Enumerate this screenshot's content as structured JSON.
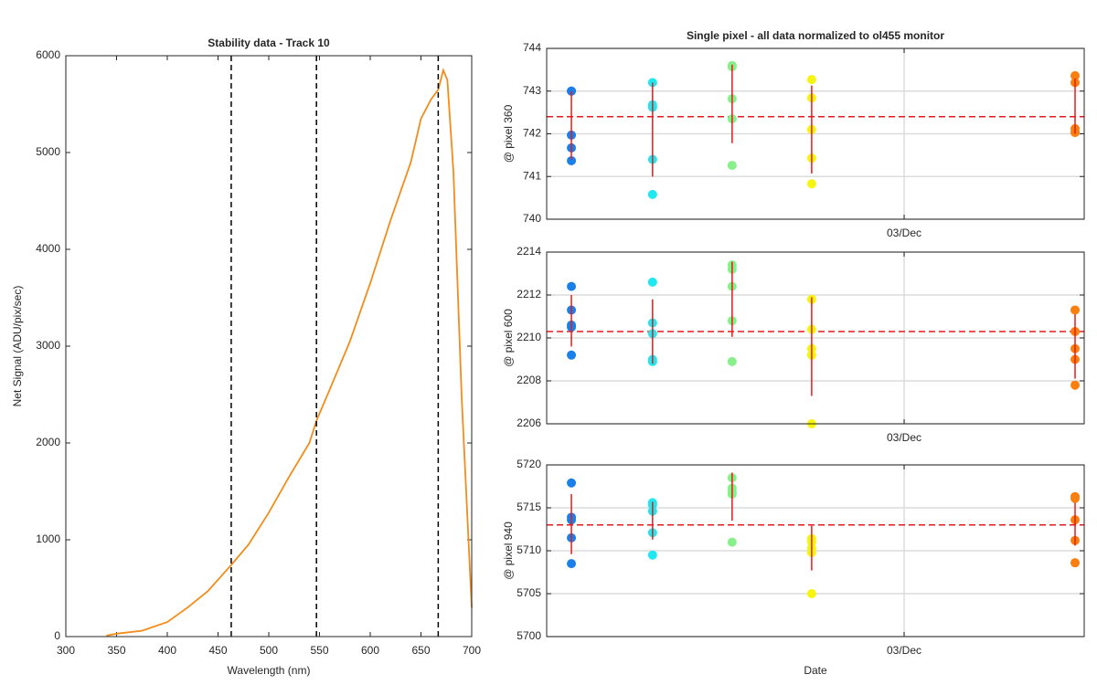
{
  "chart_data": [
    {
      "type": "line",
      "title": "Stability data - Track 10",
      "x_label": "Wavelength (nm)",
      "y_label": "Net Signal (ADU/pix/sec)",
      "xlim": [
        300,
        700
      ],
      "xticks": [
        300,
        350,
        400,
        450,
        500,
        550,
        600,
        650,
        700
      ],
      "ylim": [
        0,
        6000
      ],
      "yticks": [
        0,
        1000,
        2000,
        3000,
        4000,
        5000,
        6000
      ],
      "grid": false,
      "series": [
        {
          "color": "#f28c1a",
          "x": [
            340,
            350,
            375,
            400,
            420,
            440,
            463,
            480,
            500,
            520,
            540,
            547,
            560,
            580,
            600,
            620,
            640,
            650,
            660,
            667,
            672,
            676,
            682,
            690,
            700
          ],
          "values": [
            10,
            30,
            60,
            150,
            300,
            470,
            740,
            950,
            1280,
            1650,
            2000,
            2230,
            2550,
            3050,
            3650,
            4300,
            4900,
            5350,
            5550,
            5650,
            5850,
            5750,
            4800,
            2500,
            300
          ]
        }
      ],
      "vlines": [
        463,
        547,
        667
      ],
      "vline_color": "#000000"
    },
    {
      "type": "scatter",
      "title": "Single pixel - all data normalized to ol455 monitor",
      "y_label": "@ pixel 360",
      "xlim": [
        0,
        100
      ],
      "xticks": [
        {
          "value": 66.5,
          "label": "03/Dec"
        }
      ],
      "ylim": [
        740,
        744
      ],
      "yticks": [
        740,
        741,
        742,
        743,
        744
      ],
      "grid": true,
      "mean_line": 742.4,
      "line_color": "#e8191c",
      "series": [
        {
          "color": "#1a7fe8",
          "x": 4.6,
          "values": [
            743.0,
            741.97,
            741.67,
            741.37,
            743.0
          ],
          "mean": 742.2,
          "std": 0.8
        },
        {
          "color": "#1ee8f0",
          "x": 19.7,
          "values": [
            743.2,
            742.68,
            742.62,
            741.4,
            740.58
          ],
          "mean": 742.1,
          "std": 1.1
        },
        {
          "color": "#88f08a",
          "x": 34.5,
          "values": [
            743.6,
            743.57,
            742.82,
            742.35,
            741.26
          ],
          "mean": 742.7,
          "std": 0.92
        },
        {
          "color": "#f5f50f",
          "x": 49.3,
          "values": [
            743.27,
            742.84,
            742.1,
            741.43,
            740.83
          ],
          "mean": 742.1,
          "std": 1.03
        },
        {
          "color": "#f97f0f",
          "x": 98.3,
          "values": [
            743.36,
            743.2,
            742.12,
            742.03,
            742.05
          ],
          "mean": 742.65,
          "std": 0.65
        }
      ]
    },
    {
      "type": "scatter",
      "y_label": "@ pixel 600",
      "xlim": [
        0,
        100
      ],
      "xticks": [
        {
          "value": 66.5,
          "label": "03/Dec"
        }
      ],
      "ylim": [
        2206,
        2214
      ],
      "yticks": [
        2206,
        2208,
        2210,
        2212,
        2214
      ],
      "grid": true,
      "mean_line": 2210.3,
      "line_color": "#e8191c",
      "series": [
        {
          "color": "#1a7fe8",
          "x": 4.6,
          "values": [
            2212.4,
            2211.3,
            2210.6,
            2210.5,
            2209.2
          ],
          "mean": 2210.8,
          "std": 1.2
        },
        {
          "color": "#1ee8f0",
          "x": 19.7,
          "values": [
            2212.6,
            2210.7,
            2210.2,
            2209.0,
            2208.9
          ],
          "mean": 2210.3,
          "std": 1.5
        },
        {
          "color": "#88f08a",
          "x": 34.5,
          "values": [
            2213.4,
            2213.2,
            2212.4,
            2210.8,
            2208.9
          ],
          "mean": 2211.8,
          "std": 1.75
        },
        {
          "color": "#f5f50f",
          "x": 49.3,
          "values": [
            2211.8,
            2210.4,
            2209.5,
            2209.2,
            2206.0
          ],
          "mean": 2209.6,
          "std": 2.3
        },
        {
          "color": "#f97f0f",
          "x": 98.3,
          "values": [
            2211.3,
            2210.3,
            2209.5,
            2209.0,
            2207.8
          ],
          "mean": 2209.6,
          "std": 1.5
        }
      ]
    },
    {
      "type": "scatter",
      "y_label": "@ pixel 940",
      "x_label": "Date",
      "xlim": [
        0,
        100
      ],
      "xticks": [
        {
          "value": 66.5,
          "label": "03/Dec"
        }
      ],
      "ylim": [
        5700,
        5720
      ],
      "yticks": [
        5700,
        5705,
        5710,
        5715,
        5720
      ],
      "grid": true,
      "mean_line": 5713.0,
      "line_color": "#e8191c",
      "series": [
        {
          "color": "#1a7fe8",
          "x": 4.6,
          "values": [
            5717.9,
            5713.9,
            5713.6,
            5711.5,
            5708.5
          ],
          "mean": 5713.1,
          "std": 3.5
        },
        {
          "color": "#1ee8f0",
          "x": 19.7,
          "values": [
            5715.6,
            5715.3,
            5714.6,
            5712.1,
            5709.5
          ],
          "mean": 5713.5,
          "std": 2.2
        },
        {
          "color": "#88f08a",
          "x": 34.5,
          "values": [
            5718.5,
            5717.3,
            5716.6,
            5716.9,
            5711.0
          ],
          "mean": 5716.3,
          "std": 2.8
        },
        {
          "color": "#f5f50f",
          "x": 49.3,
          "values": [
            5711.4,
            5711.0,
            5710.3,
            5709.8,
            5705.0
          ],
          "mean": 5710.3,
          "std": 2.6
        },
        {
          "color": "#f97f0f",
          "x": 98.3,
          "values": [
            5716.3,
            5716.1,
            5713.6,
            5711.2,
            5708.6
          ],
          "mean": 5713.1,
          "std": 2.5
        }
      ]
    }
  ]
}
